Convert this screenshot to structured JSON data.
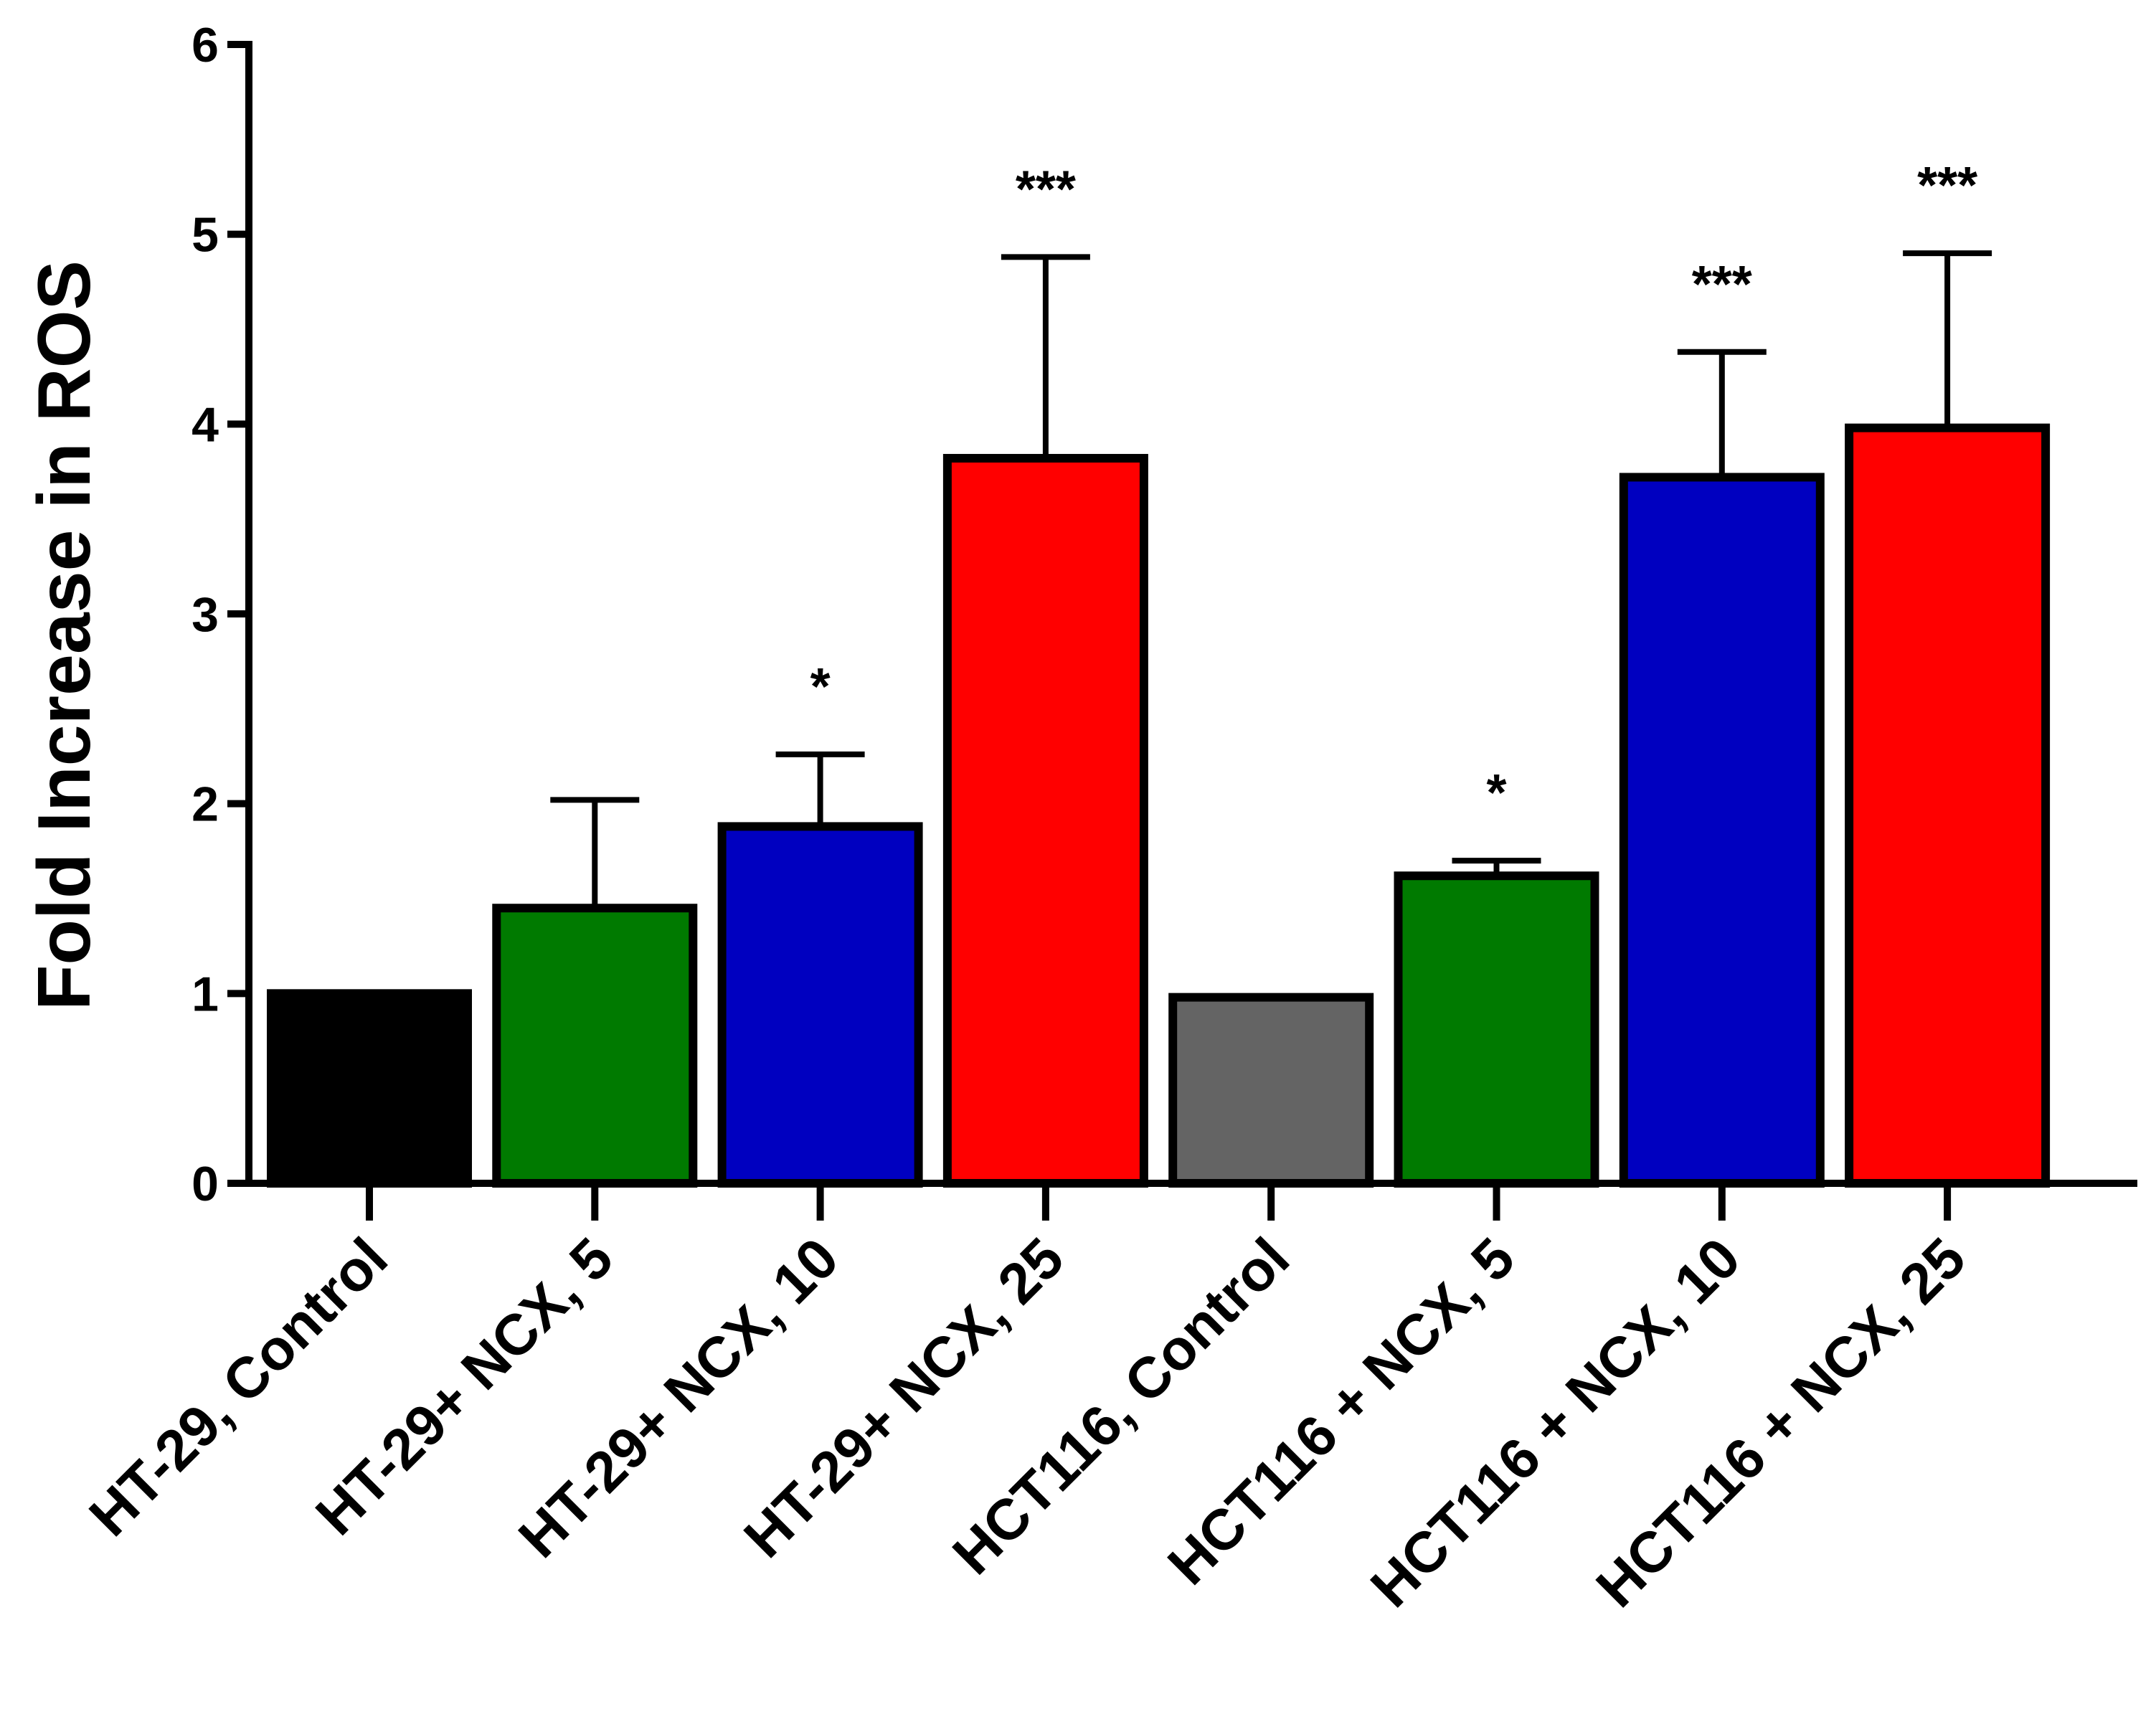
{
  "chart_data": {
    "type": "bar",
    "ylabel": "Fold Increase in ROS",
    "xlabel": "",
    "ylim": [
      0,
      6
    ],
    "yticks": [
      0,
      1,
      2,
      3,
      4,
      5,
      6
    ],
    "grid": false,
    "categories": [
      "HT-29, Control",
      "HT-29+ NCX, 5",
      "HT-29+ NCX, 10",
      "HT-29+ NCX, 25",
      "HCT116, Control",
      "HCT116 + NCX, 5",
      "HCT116 + NCX, 10",
      "HCT116 + NCX, 25"
    ],
    "values": [
      1.0,
      1.45,
      1.88,
      3.82,
      0.98,
      1.62,
      3.72,
      3.98
    ],
    "errors": [
      0.0,
      0.57,
      0.38,
      1.06,
      0.0,
      0.08,
      0.66,
      0.92
    ],
    "significance": [
      "",
      "",
      "*",
      "***",
      "",
      "*",
      "***",
      "***"
    ],
    "colors": [
      "#000000",
      "#007A00",
      "#0000C0",
      "#FF0000",
      "#646464",
      "#007A00",
      "#0000C0",
      "#FF0000"
    ]
  }
}
